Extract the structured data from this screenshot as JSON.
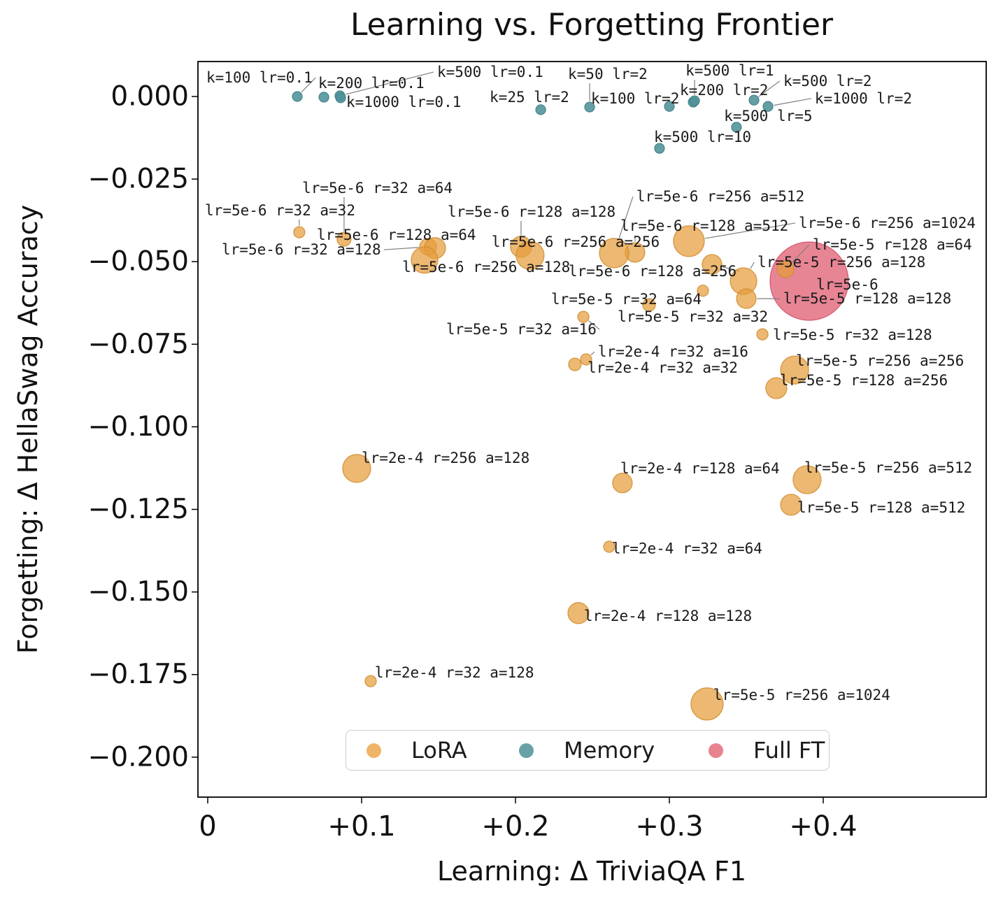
{
  "title": "Learning vs. Forgetting Frontier",
  "axes": {
    "x_label": "Learning: Δ TriviaQA F1",
    "y_label": "Forgetting: Δ HellaSwag Accuracy",
    "x_ticks": [
      {
        "v": 0.0,
        "t": "0"
      },
      {
        "v": 0.1,
        "t": "+0.1"
      },
      {
        "v": 0.2,
        "t": "+0.2"
      },
      {
        "v": 0.3,
        "t": "+0.3"
      },
      {
        "v": 0.4,
        "t": "+0.4"
      }
    ],
    "y_ticks": [
      {
        "v": 0.0,
        "t": "0.000"
      },
      {
        "v": -0.025,
        "t": "−0.025"
      },
      {
        "v": -0.05,
        "t": "−0.050"
      },
      {
        "v": -0.075,
        "t": "−0.075"
      },
      {
        "v": -0.1,
        "t": "−0.100"
      },
      {
        "v": -0.125,
        "t": "−0.125"
      },
      {
        "v": -0.15,
        "t": "−0.150"
      },
      {
        "v": -0.175,
        "t": "−0.175"
      },
      {
        "v": -0.2,
        "t": "−0.200"
      }
    ],
    "xlim": [
      -0.0064,
      0.506
    ],
    "ylim": [
      -0.2121,
      0.0106
    ],
    "grid": false
  },
  "legend": {
    "position": "lower center",
    "items": [
      {
        "label": "LoRA",
        "color": "#efb468"
      },
      {
        "label": "Memory",
        "color": "#67a1a5"
      },
      {
        "label": "Full FT",
        "color": "#e8828e"
      }
    ]
  },
  "colors": {
    "lora_fill": "#e59c3c",
    "lora_edge": "#cf8c2e",
    "memory_fill": "#4f9298",
    "memory_edge": "#3f8187",
    "full_ft_fill": "#e06377",
    "full_ft_edge": "#d14f64",
    "leader_line": "#7f7f7f",
    "axis": "#000000",
    "text": "#1a1a1a"
  },
  "chart_data": {
    "type": "scatter",
    "title": "Learning vs. Forgetting Frontier",
    "xlabel": "Learning: Δ TriviaQA F1",
    "ylabel": "Forgetting: Δ HellaSwag Accuracy",
    "series": [
      {
        "name": "LoRA",
        "points": [
          {
            "x": 0.0595,
            "y": -0.0411,
            "r": 8,
            "label": "lr=5e-6 r=32 a=32",
            "lx": -0.0018,
            "ly": -0.0345,
            "leader": true
          },
          {
            "x": 0.0886,
            "y": -0.0432,
            "r": 10,
            "label": "lr=5e-6 r=32 a=64",
            "lx": 0.0614,
            "ly": -0.0277,
            "leader": true
          },
          {
            "x": 0.1432,
            "y": -0.0455,
            "r": 12,
            "label": "lr=5e-6 r=32 a=128",
            "lx": 0.0091,
            "ly": -0.0464,
            "leader": true
          },
          {
            "x": 0.1477,
            "y": -0.0459,
            "r": 15,
            "label": "lr=5e-6 r=128 a=64",
            "lx": 0.0709,
            "ly": -0.0419,
            "leader": true
          },
          {
            "x": 0.1409,
            "y": -0.0495,
            "r": 19,
            "label": "lr=5e-6 r=256 a=128",
            "lx": 0.1264,
            "ly": -0.0516,
            "leader": false
          },
          {
            "x": 0.2036,
            "y": -0.0455,
            "r": 15,
            "label": "lr=5e-6 r=128 a=128",
            "lx": 0.1559,
            "ly": -0.0349,
            "leader": true
          },
          {
            "x": 0.2095,
            "y": -0.0481,
            "r": 20,
            "label": "lr=5e-6 r=256 a=256",
            "lx": 0.1845,
            "ly": -0.044,
            "leader": false
          },
          {
            "x": 0.2777,
            "y": -0.0472,
            "r": 14,
            "label": "lr=5e-6 r=128 a=512",
            "lx": 0.2682,
            "ly": -0.0392,
            "leader": true
          },
          {
            "x": 0.2641,
            "y": -0.0474,
            "r": 21,
            "label": "lr=5e-6 r=256 a=512",
            "lx": 0.2786,
            "ly": -0.0303,
            "leader": true
          },
          {
            "x": 0.3127,
            "y": -0.0438,
            "r": 22,
            "label": "lr=5e-6 r=256 a=1024",
            "lx": 0.3841,
            "ly": -0.0383,
            "leader": true
          },
          {
            "x": 0.3277,
            "y": -0.0508,
            "r": 14,
            "label": "lr=5e-6 r=128 a=256",
            "lx": 0.2345,
            "ly": -0.0529,
            "leader": true
          },
          {
            "x": 0.3755,
            "y": -0.0523,
            "r": 12,
            "label": "lr=5e-5 r=128 a=64",
            "lx": 0.3932,
            "ly": -0.0449,
            "leader": true
          },
          {
            "x": 0.3482,
            "y": -0.0559,
            "r": 19,
            "label": "lr=5e-5 r=256 a=128",
            "lx": 0.3573,
            "ly": -0.0502,
            "leader": true
          },
          {
            "x": 0.35,
            "y": -0.0612,
            "r": 14,
            "label": "lr=5e-5 r=128 a=128",
            "lx": 0.3741,
            "ly": -0.0612,
            "leader": true
          },
          {
            "x": 0.3218,
            "y": -0.0588,
            "r": 8,
            "label": "lr=5e-5 r=32 a=64",
            "lx": 0.2232,
            "ly": -0.0614,
            "leader": false
          },
          {
            "x": 0.2868,
            "y": -0.0631,
            "r": 9,
            "label": "lr=5e-5 r=32 a=32",
            "lx": 0.2664,
            "ly": -0.0667,
            "leader": true
          },
          {
            "x": 0.2441,
            "y": -0.0667,
            "r": 8,
            "label": "lr=5e-5 r=32 a=16",
            "lx": 0.155,
            "ly": -0.0705,
            "leader": true
          },
          {
            "x": 0.3605,
            "y": -0.072,
            "r": 8,
            "label": "lr=5e-5 r=32 a=128",
            "lx": 0.3673,
            "ly": -0.0722,
            "leader": false
          },
          {
            "x": 0.2459,
            "y": -0.0796,
            "r": 8,
            "label": "lr=2e-4 r=32 a=16",
            "lx": 0.2536,
            "ly": -0.0773,
            "leader": true
          },
          {
            "x": 0.2386,
            "y": -0.0811,
            "r": 9,
            "label": "lr=2e-4 r=32 a=32",
            "lx": 0.2468,
            "ly": -0.0821,
            "leader": false
          },
          {
            "x": 0.3814,
            "y": -0.0828,
            "r": 20,
            "label": "lr=5e-5 r=256 a=256",
            "lx": 0.3823,
            "ly": -0.08,
            "leader": true
          },
          {
            "x": 0.3695,
            "y": -0.0883,
            "r": 15,
            "label": "lr=5e-5 r=128 a=256",
            "lx": 0.3718,
            "ly": -0.0859,
            "leader": false
          },
          {
            "x": 0.0968,
            "y": -0.1126,
            "r": 20,
            "label": "lr=2e-4 r=256 a=128",
            "lx": 0.1,
            "ly": -0.1094,
            "leader": false
          },
          {
            "x": 0.2695,
            "y": -0.117,
            "r": 14,
            "label": "lr=2e-4 r=128 a=64",
            "lx": 0.2682,
            "ly": -0.1126,
            "leader": false
          },
          {
            "x": 0.3895,
            "y": -0.116,
            "r": 20,
            "label": "lr=5e-5 r=256 a=512",
            "lx": 0.3877,
            "ly": -0.1124,
            "leader": false
          },
          {
            "x": 0.3791,
            "y": -0.1236,
            "r": 15,
            "label": "lr=5e-5 r=128 a=512",
            "lx": 0.3832,
            "ly": -0.1245,
            "leader": false
          },
          {
            "x": 0.2609,
            "y": -0.1363,
            "r": 8,
            "label": "lr=2e-4 r=32 a=64",
            "lx": 0.2627,
            "ly": -0.1369,
            "leader": false
          },
          {
            "x": 0.2409,
            "y": -0.1564,
            "r": 15,
            "label": "lr=2e-4 r=128 a=128",
            "lx": 0.2445,
            "ly": -0.1573,
            "leader": false
          },
          {
            "x": 0.1059,
            "y": -0.177,
            "r": 8,
            "label": "lr=2e-4 r=32 a=128",
            "lx": 0.1086,
            "ly": -0.1744,
            "leader": false
          },
          {
            "x": 0.3245,
            "y": -0.1839,
            "r": 23,
            "label": "lr=5e-5 r=256 a=1024",
            "lx": 0.3286,
            "ly": -0.1812,
            "leader": false
          }
        ]
      },
      {
        "name": "Memory",
        "points": [
          {
            "x": 0.0582,
            "y": 0.0,
            "r": 7,
            "label": "k=100 lr=0.1",
            "lx": -0.0009,
            "ly": 0.0057,
            "leader": true
          },
          {
            "x": 0.0755,
            "y": -0.0002,
            "r": 7,
            "label": "k=200 lr=0.1",
            "lx": 0.0718,
            "ly": 0.004,
            "leader": false
          },
          {
            "x": 0.0859,
            "y": 0.0002,
            "r": 7,
            "label": "k=500 lr=0.1",
            "lx": 0.1491,
            "ly": 0.0074,
            "leader": true
          },
          {
            "x": 0.0864,
            "y": -0.0004,
            "r": 7,
            "label": "k=1000 lr=0.1",
            "lx": 0.09,
            "ly": -0.0017,
            "leader": false
          },
          {
            "x": 0.2164,
            "y": -0.004,
            "r": 7,
            "label": "k=25 lr=2",
            "lx": 0.1832,
            "ly": -0.0002,
            "leader": false
          },
          {
            "x": 0.2482,
            "y": -0.0032,
            "r": 7,
            "label": "k=50 lr=2",
            "lx": 0.2341,
            "ly": 0.0068,
            "leader": true
          },
          {
            "x": 0.3,
            "y": -0.003,
            "r": 7,
            "label": "k=100 lr=2",
            "lx": 0.2491,
            "ly": -0.0006,
            "leader": false
          },
          {
            "x": 0.3155,
            "y": -0.0017,
            "r": 7,
            "label": "k=200 lr=2",
            "lx": 0.3068,
            "ly": 0.0019,
            "leader": true
          },
          {
            "x": 0.3164,
            "y": -0.0013,
            "r": 7,
            "label": "k=500 lr=1",
            "lx": 0.3105,
            "ly": 0.0078,
            "leader": true
          },
          {
            "x": 0.355,
            "y": -0.0011,
            "r": 7,
            "label": "k=500 lr=2",
            "lx": 0.3741,
            "ly": 0.0047,
            "leader": true
          },
          {
            "x": 0.3641,
            "y": -0.003,
            "r": 7,
            "label": "k=1000 lr=2",
            "lx": 0.3945,
            "ly": -0.0006,
            "leader": true
          },
          {
            "x": 0.3436,
            "y": -0.0093,
            "r": 7,
            "label": "k=500 lr=5",
            "lx": 0.3355,
            "ly": -0.0059,
            "leader": false
          },
          {
            "x": 0.2936,
            "y": -0.0157,
            "r": 7,
            "label": "k=500 lr=10",
            "lx": 0.29,
            "ly": -0.0123,
            "leader": false
          }
        ]
      },
      {
        "name": "Full FT",
        "points": [
          {
            "x": 0.3909,
            "y": -0.0559,
            "r": 56,
            "label": "lr=5e-6",
            "lx": 0.3955,
            "ly": -0.0569,
            "leader": false
          }
        ]
      }
    ]
  }
}
